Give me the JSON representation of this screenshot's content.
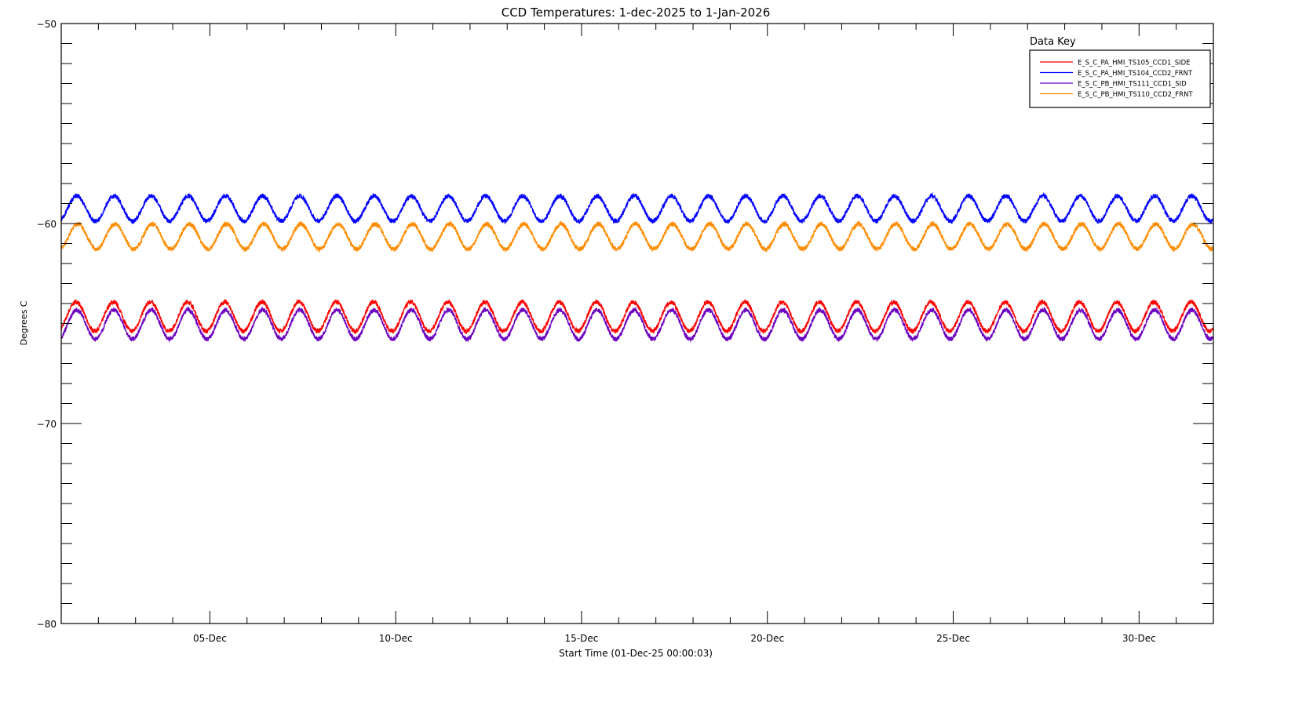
{
  "chart_data": {
    "type": "line",
    "title": "CCD Temperatures: 1-dec-2025 to 1-Jan-2026",
    "xlabel": "Start Time (01-Dec-25 00:00:03)",
    "ylabel": "Degrees C",
    "xlim_days": [
      0,
      31
    ],
    "ylim": [
      -80,
      -50
    ],
    "y_ticks": [
      -50,
      -60,
      -70,
      -80
    ],
    "y_tick_labels": [
      "-50",
      "-60",
      "-70",
      "-80"
    ],
    "x_ticks_days": [
      4,
      9,
      14,
      19,
      24,
      29
    ],
    "x_tick_labels": [
      "05-Dec",
      "10-Dec",
      "15-Dec",
      "20-Dec",
      "25-Dec",
      "30-Dec"
    ],
    "legend_title": "Data Key",
    "legend_position": "top-right",
    "series": [
      {
        "name": "E_S_C_PA_HMI_TS105_CCD1_SIDE",
        "color": "#ff0000",
        "min": -65.5,
        "max": -63.8,
        "period_days": 1.0,
        "peak_day": 0.4
      },
      {
        "name": "E_S_C_PA_HMI_TS104_CCD2_FRNT",
        "color": "#0000ff",
        "min": -60.0,
        "max": -58.5,
        "period_days": 1.0,
        "peak_day": 0.42
      },
      {
        "name": "E_S_C_PB_HMI_TS111_CCD1_SID",
        "color": "#6a00c0",
        "min": -65.9,
        "max": -64.2,
        "period_days": 1.0,
        "peak_day": 0.42
      },
      {
        "name": "E_S_C_PB_HMI_TS110_CCD2_FRNT",
        "color": "#ff8c00",
        "min": -61.4,
        "max": -59.9,
        "period_days": 1.0,
        "peak_day": 0.45
      }
    ]
  }
}
